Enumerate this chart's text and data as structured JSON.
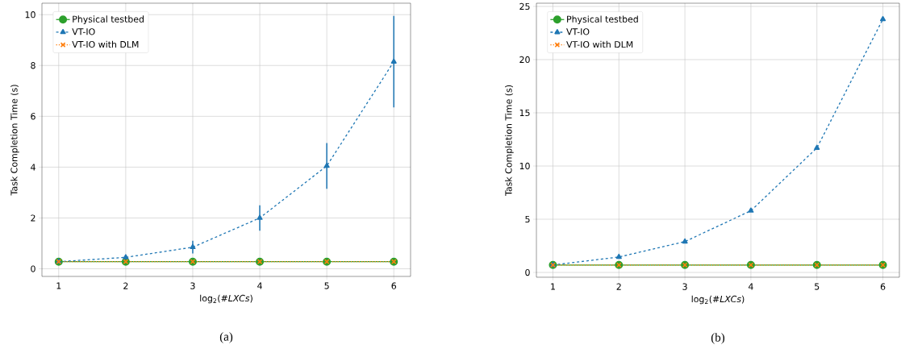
{
  "chart_data": [
    {
      "type": "line",
      "xlabel": "log$_{2}$(#*LXCs*)",
      "ylabel": "Task Completion Time (s)",
      "annotations": [
        "(a)"
      ],
      "x": [
        1,
        2,
        3,
        4,
        5,
        6
      ],
      "xlim": [
        0.75,
        6.25
      ],
      "xticks": [
        1,
        2,
        3,
        4,
        5,
        6
      ],
      "ylim": [
        -0.3,
        10.45
      ],
      "yticks": [
        0,
        2,
        4,
        6,
        8,
        10
      ],
      "grid": true,
      "legend": "top left",
      "series": [
        {
          "name": "Physical testbed",
          "color": "#2ca02c",
          "marker": "circle",
          "line_style": "solid",
          "values": [
            0.28,
            0.28,
            0.28,
            0.28,
            0.28,
            0.28
          ]
        },
        {
          "name": "VT-IO",
          "color": "#1f77b4",
          "marker": "triangle",
          "line_style": "dashed",
          "values": [
            0.28,
            0.45,
            0.85,
            2.0,
            4.05,
            8.15
          ],
          "errors": [
            0.05,
            0.1,
            0.25,
            0.5,
            0.9,
            1.8
          ]
        },
        {
          "name": "VT-IO with DLM",
          "color": "#ff7f0e",
          "marker": "cross",
          "line_style": "dotted",
          "values": [
            0.28,
            0.28,
            0.28,
            0.28,
            0.28,
            0.28
          ]
        }
      ]
    },
    {
      "type": "line",
      "xlabel": "log$_{2}$(#*LXCs*)",
      "ylabel": "Task Completion Time (s)",
      "annotations": [
        "(b)"
      ],
      "x": [
        1,
        2,
        3,
        4,
        5,
        6
      ],
      "xlim": [
        0.75,
        6.25
      ],
      "xticks": [
        1,
        2,
        3,
        4,
        5,
        6
      ],
      "ylim": [
        -0.45,
        25.3
      ],
      "yticks": [
        0,
        5,
        10,
        15,
        20,
        25
      ],
      "grid": true,
      "legend": "top left",
      "series": [
        {
          "name": "Physical testbed",
          "color": "#2ca02c",
          "marker": "circle",
          "line_style": "solid",
          "values": [
            0.7,
            0.7,
            0.7,
            0.7,
            0.7,
            0.7
          ]
        },
        {
          "name": "VT-IO",
          "color": "#1f77b4",
          "marker": "triangle",
          "line_style": "dashed",
          "values": [
            0.7,
            1.45,
            2.9,
            5.8,
            11.7,
            23.8
          ]
        },
        {
          "name": "VT-IO with DLM",
          "color": "#ff7f0e",
          "marker": "cross",
          "line_style": "dotted",
          "values": [
            0.7,
            0.7,
            0.7,
            0.7,
            0.7,
            0.7
          ]
        }
      ]
    }
  ]
}
